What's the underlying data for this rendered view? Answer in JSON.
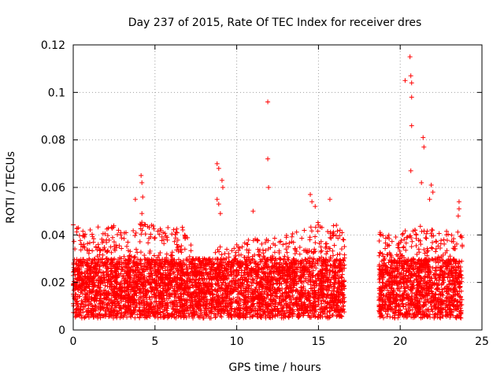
{
  "chart_data": {
    "type": "scatter",
    "title": "Day 237 of 2015, Rate Of TEC Index for receiver dres",
    "xlabel": "GPS time / hours",
    "ylabel": "ROTI / TECUs",
    "xlim": [
      0,
      25
    ],
    "ylim": [
      0,
      0.12
    ],
    "x_ticks": [
      0,
      5,
      10,
      15,
      20,
      25
    ],
    "x_tick_labels": [
      "0",
      "5",
      "10",
      "15",
      "20",
      "25"
    ],
    "y_ticks": [
      0,
      0.02,
      0.04,
      0.06,
      0.08,
      0.1,
      0.12
    ],
    "y_tick_labels": [
      "0",
      "0.02",
      "0.04",
      "0.06",
      "0.08",
      "0.1",
      "0.12"
    ],
    "grid": true,
    "marker": "+",
    "color": "#ff0000",
    "series": [
      {
        "name": "ROTI",
        "segments": [
          {
            "x_start": 0.0,
            "x_end": 16.6,
            "typical_min": 0.005,
            "typical_max": 0.03
          },
          {
            "x_start": 18.7,
            "x_end": 23.8,
            "typical_min": 0.005,
            "typical_max": 0.03
          }
        ],
        "envelope": [
          {
            "x": 0.0,
            "y": 0.045
          },
          {
            "x": 1.0,
            "y": 0.042
          },
          {
            "x": 2.0,
            "y": 0.045
          },
          {
            "x": 3.0,
            "y": 0.043
          },
          {
            "x": 4.0,
            "y": 0.046
          },
          {
            "x": 5.0,
            "y": 0.044
          },
          {
            "x": 6.0,
            "y": 0.043
          },
          {
            "x": 7.0,
            "y": 0.045
          },
          {
            "x": 8.0,
            "y": 0.032
          },
          {
            "x": 9.0,
            "y": 0.035
          },
          {
            "x": 10.0,
            "y": 0.036
          },
          {
            "x": 11.0,
            "y": 0.039
          },
          {
            "x": 12.0,
            "y": 0.038
          },
          {
            "x": 13.0,
            "y": 0.04
          },
          {
            "x": 14.0,
            "y": 0.042
          },
          {
            "x": 15.0,
            "y": 0.046
          },
          {
            "x": 16.0,
            "y": 0.045
          },
          {
            "x": 16.6,
            "y": 0.04
          },
          {
            "x": 18.7,
            "y": 0.042
          },
          {
            "x": 20.0,
            "y": 0.042
          },
          {
            "x": 21.0,
            "y": 0.044
          },
          {
            "x": 22.0,
            "y": 0.043
          },
          {
            "x": 23.0,
            "y": 0.044
          },
          {
            "x": 23.8,
            "y": 0.04
          }
        ],
        "outliers": [
          {
            "x": 3.8,
            "y": 0.055
          },
          {
            "x": 4.15,
            "y": 0.065
          },
          {
            "x": 4.2,
            "y": 0.062
          },
          {
            "x": 4.25,
            "y": 0.056
          },
          {
            "x": 4.2,
            "y": 0.049
          },
          {
            "x": 8.8,
            "y": 0.07
          },
          {
            "x": 8.9,
            "y": 0.068
          },
          {
            "x": 9.1,
            "y": 0.063
          },
          {
            "x": 9.15,
            "y": 0.06
          },
          {
            "x": 8.8,
            "y": 0.055
          },
          {
            "x": 8.9,
            "y": 0.053
          },
          {
            "x": 9.0,
            "y": 0.049
          },
          {
            "x": 11.0,
            "y": 0.05
          },
          {
            "x": 11.9,
            "y": 0.096
          },
          {
            "x": 11.9,
            "y": 0.072
          },
          {
            "x": 11.95,
            "y": 0.06
          },
          {
            "x": 14.5,
            "y": 0.057
          },
          {
            "x": 14.6,
            "y": 0.054
          },
          {
            "x": 14.8,
            "y": 0.052
          },
          {
            "x": 15.7,
            "y": 0.055
          },
          {
            "x": 20.3,
            "y": 0.105
          },
          {
            "x": 20.6,
            "y": 0.115
          },
          {
            "x": 20.65,
            "y": 0.107
          },
          {
            "x": 20.7,
            "y": 0.104
          },
          {
            "x": 20.7,
            "y": 0.098
          },
          {
            "x": 20.7,
            "y": 0.086
          },
          {
            "x": 20.65,
            "y": 0.067
          },
          {
            "x": 21.4,
            "y": 0.081
          },
          {
            "x": 21.45,
            "y": 0.077
          },
          {
            "x": 21.3,
            "y": 0.062
          },
          {
            "x": 21.9,
            "y": 0.061
          },
          {
            "x": 22.0,
            "y": 0.058
          },
          {
            "x": 21.8,
            "y": 0.055
          },
          {
            "x": 23.6,
            "y": 0.054
          },
          {
            "x": 23.6,
            "y": 0.051
          },
          {
            "x": 23.55,
            "y": 0.048
          }
        ]
      }
    ]
  }
}
